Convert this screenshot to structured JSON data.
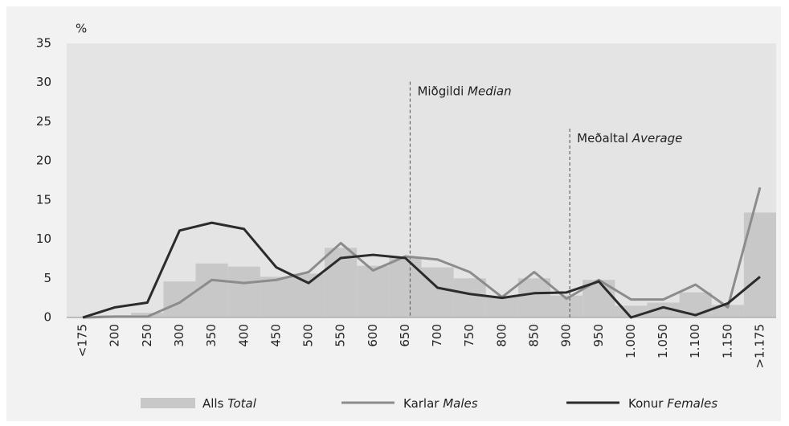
{
  "chart_data": {
    "type": "bar_line",
    "y_unit": "%",
    "categories": [
      "<175",
      "200",
      "250",
      "300",
      "350",
      "400",
      "450",
      "500",
      "550",
      "600",
      "650",
      "700",
      "750",
      "800",
      "850",
      "900",
      "950",
      "1.000",
      "1.050",
      "1.100",
      "1.150",
      ">1.175"
    ],
    "series": [
      {
        "name": "Alls Total",
        "kind": "bar",
        "color": "#c8c8c8",
        "values": [
          0.1,
          0.3,
          0.6,
          4.6,
          6.9,
          6.5,
          5.2,
          5.6,
          8.9,
          6.6,
          7.7,
          6.4,
          5.0,
          2.7,
          5.0,
          2.8,
          4.8,
          1.5,
          1.9,
          3.2,
          1.6,
          13.4
        ]
      },
      {
        "name": "Karlar Males",
        "kind": "line",
        "color": "#8c8c8c",
        "values": [
          0.0,
          0.1,
          0.1,
          1.9,
          4.8,
          4.4,
          4.8,
          5.8,
          9.5,
          6.0,
          7.8,
          7.4,
          5.8,
          2.6,
          5.8,
          2.4,
          4.8,
          2.3,
          2.3,
          4.2,
          1.3,
          16.6
        ]
      },
      {
        "name": "Konur Females",
        "kind": "line",
        "color": "#2b2b2b",
        "values": [
          0.0,
          1.3,
          1.9,
          11.1,
          12.1,
          11.3,
          6.4,
          4.4,
          7.6,
          8.0,
          7.6,
          3.8,
          3.0,
          2.5,
          3.1,
          3.2,
          4.6,
          0.0,
          1.3,
          0.3,
          1.8,
          5.2
        ]
      }
    ],
    "annotations": [
      {
        "text": "Miðgildi Median",
        "x": 10.15,
        "y": 29.5
      },
      {
        "text": "Meðaltal Average",
        "x": 15.1,
        "y": 23.5
      }
    ],
    "ylim": [
      0,
      35
    ],
    "yticks": [
      0,
      5,
      10,
      15,
      20,
      25,
      30,
      35
    ],
    "grid": false
  }
}
